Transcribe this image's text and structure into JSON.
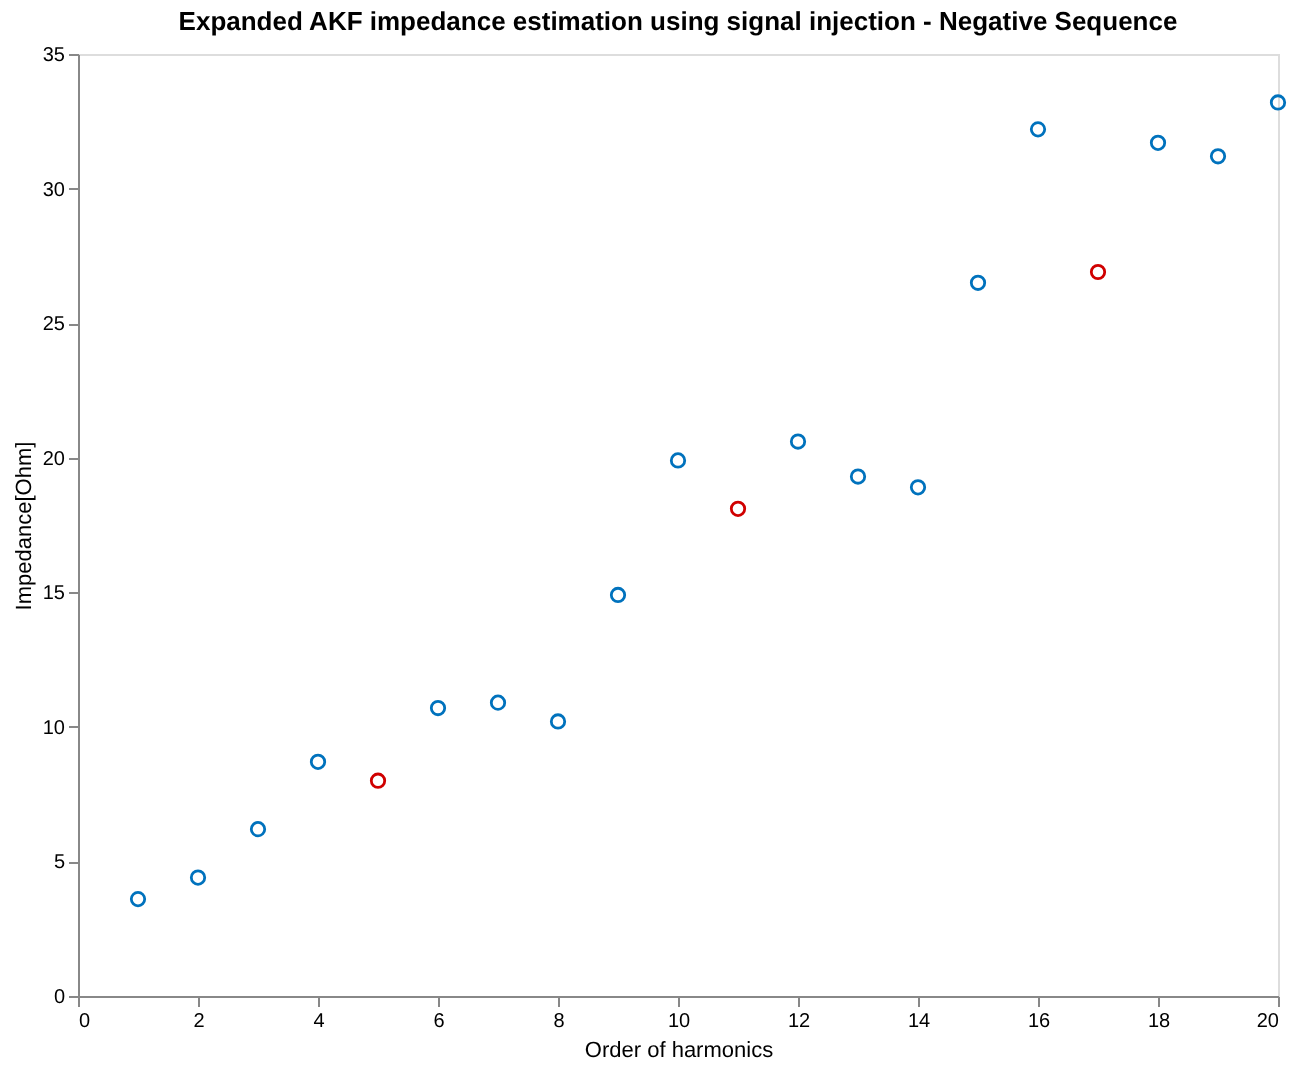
{
  "chart_data": {
    "type": "scatter",
    "title": "Expanded AKF impedance estimation using signal injection - Negative Sequence",
    "xlabel": "Order of harmonics",
    "ylabel": "Impedance[Ohm]",
    "series": [
      {
        "color": "#0072bd",
        "x": [
          1,
          2,
          3,
          4,
          6,
          7,
          8,
          9,
          10,
          12,
          13,
          14,
          15,
          16,
          18,
          19,
          20
        ],
        "values": [
          3.6,
          4.4,
          6.2,
          8.7,
          10.7,
          10.9,
          10.2,
          14.9,
          19.9,
          20.6,
          19.3,
          18.9,
          26.5,
          32.2,
          31.7,
          31.2,
          33.2
        ]
      },
      {
        "color": "#d00000",
        "x": [
          5,
          11,
          17
        ],
        "values": [
          8.0,
          18.1,
          26.9
        ]
      }
    ],
    "xlim": [
      0,
      20
    ],
    "ylim": [
      0,
      35
    ],
    "xticks": [
      0,
      2,
      4,
      6,
      8,
      10,
      12,
      14,
      16,
      18,
      20
    ],
    "yticks": [
      0,
      5,
      10,
      15,
      20,
      25,
      30,
      35
    ],
    "grid": false,
    "legend": false,
    "marker": "circle"
  }
}
